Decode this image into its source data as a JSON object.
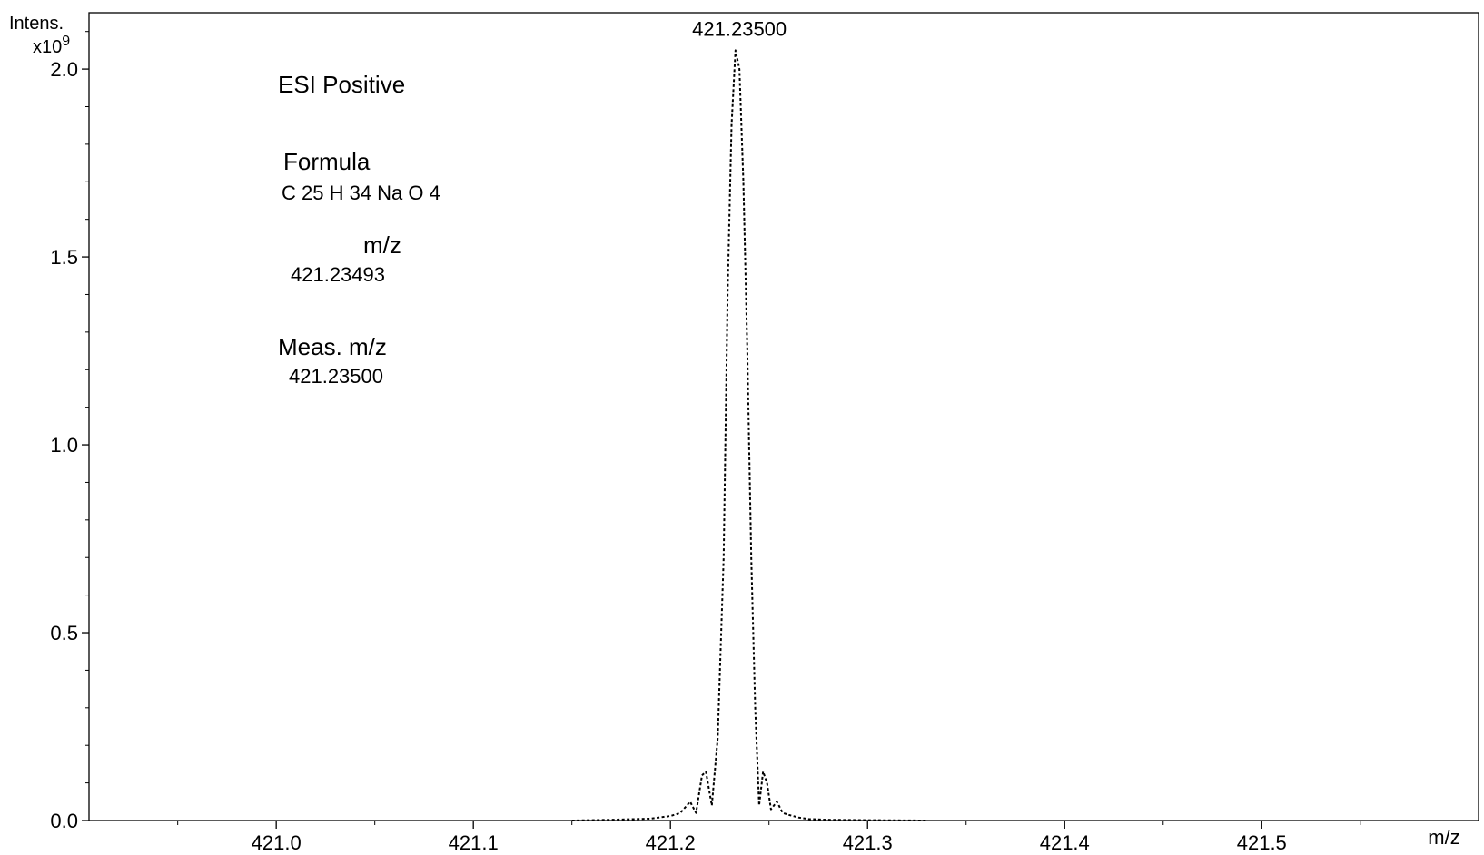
{
  "chart_data": {
    "type": "line",
    "title": "",
    "xlabel": "m/z",
    "ylabel": "Intens.",
    "y_multiplier_label": "x10",
    "y_multiplier_exponent": "9",
    "xlim": [
      420.905,
      421.61
    ],
    "ylim": [
      0,
      2.15
    ],
    "x_ticks": [
      "421.0",
      "421.1",
      "421.2",
      "421.3",
      "421.4",
      "421.5"
    ],
    "y_ticks": [
      "0.0",
      "0.5",
      "1.0",
      "1.5",
      "2.0"
    ],
    "grid": false,
    "legend": "none",
    "series": [
      {
        "line_style": "dotted",
        "color": "#000000",
        "x": [
          421.15,
          421.17,
          421.19,
          421.2,
          421.205,
          421.21,
          421.213,
          421.216,
          421.218,
          421.221,
          421.224,
          421.227,
          421.229,
          421.231,
          421.233,
          421.235,
          421.237,
          421.239,
          421.241,
          421.243,
          421.245,
          421.247,
          421.249,
          421.251,
          421.254,
          421.257,
          421.26,
          421.265,
          421.27,
          421.28,
          421.3,
          421.33
        ],
        "y": [
          0.0,
          0.002,
          0.005,
          0.012,
          0.02,
          0.05,
          0.02,
          0.12,
          0.13,
          0.04,
          0.22,
          0.7,
          1.4,
          1.85,
          2.05,
          2.0,
          1.7,
          1.25,
          0.7,
          0.3,
          0.04,
          0.13,
          0.1,
          0.03,
          0.05,
          0.02,
          0.015,
          0.008,
          0.004,
          0.002,
          0.001,
          0.0
        ]
      }
    ],
    "peak_label": "421.23500",
    "peak_x": 421.235,
    "peak_y": 2.05
  },
  "annotations": {
    "mode": "ESI Positive",
    "formula_label": "Formula",
    "formula": "C 25 H 34 Na O 4",
    "mz_label": "m/z",
    "mz_value": "421.23493",
    "meas_label": "Meas. m/z",
    "meas_value": "421.23500"
  }
}
